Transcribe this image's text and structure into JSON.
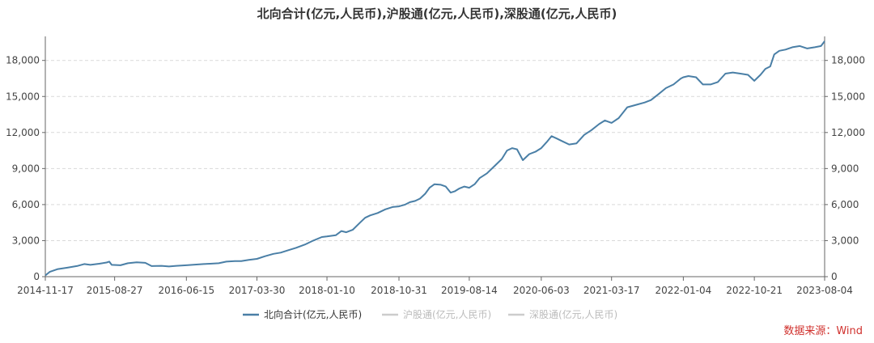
{
  "chart_data": {
    "type": "line",
    "title": "北向合计(亿元,人民币),沪股通(亿元,人民币),深股通(亿元,人民币)",
    "xlabel": "",
    "ylabel": "",
    "ylim": [
      0,
      20000
    ],
    "y_ticks": [
      "0",
      "3,000",
      "6,000",
      "9,000",
      "12,000",
      "15,000",
      "18,000"
    ],
    "y_tick_values": [
      0,
      3000,
      6000,
      9000,
      12000,
      15000,
      18000
    ],
    "x_ticks": [
      "2014-11-17",
      "2015-08-27",
      "2016-06-15",
      "2017-03-30",
      "2018-01-10",
      "2018-10-31",
      "2019-08-14",
      "2020-06-03",
      "2021-03-17",
      "2022-01-04",
      "2022-10-21",
      "2023-08-04"
    ],
    "xlim": [
      "2014-11-17",
      "2023-08-04"
    ],
    "grid": "horizontal dashed",
    "legend_position": "bottom-center",
    "series": [
      {
        "name": "北向合计(亿元,人民币)",
        "color": "#4a7fa6",
        "points": [
          [
            "2014-11-17",
            100
          ],
          [
            "2014-12-05",
            400
          ],
          [
            "2015-01-05",
            620
          ],
          [
            "2015-02-15",
            750
          ],
          [
            "2015-03-30",
            900
          ],
          [
            "2015-04-25",
            1050
          ],
          [
            "2015-05-20",
            980
          ],
          [
            "2015-06-25",
            1080
          ],
          [
            "2015-07-25",
            1180
          ],
          [
            "2015-08-05",
            1250
          ],
          [
            "2015-08-15",
            980
          ],
          [
            "2015-09-20",
            950
          ],
          [
            "2015-10-20",
            1120
          ],
          [
            "2015-11-25",
            1200
          ],
          [
            "2015-12-30",
            1150
          ],
          [
            "2016-01-25",
            880
          ],
          [
            "2016-03-05",
            900
          ],
          [
            "2016-04-05",
            850
          ],
          [
            "2016-05-05",
            900
          ],
          [
            "2016-06-15",
            950
          ],
          [
            "2016-07-20",
            1000
          ],
          [
            "2016-08-25",
            1050
          ],
          [
            "2016-09-20",
            1080
          ],
          [
            "2016-10-25",
            1120
          ],
          [
            "2016-11-25",
            1250
          ],
          [
            "2016-12-30",
            1300
          ],
          [
            "2017-01-25",
            1300
          ],
          [
            "2017-02-25",
            1400
          ],
          [
            "2017-03-30",
            1480
          ],
          [
            "2017-05-01",
            1700
          ],
          [
            "2017-06-05",
            1900
          ],
          [
            "2017-07-05",
            2000
          ],
          [
            "2017-08-05",
            2200
          ],
          [
            "2017-09-05",
            2400
          ],
          [
            "2017-10-15",
            2700
          ],
          [
            "2017-11-15",
            3000
          ],
          [
            "2017-12-20",
            3300
          ],
          [
            "2018-01-10",
            3350
          ],
          [
            "2018-02-15",
            3450
          ],
          [
            "2018-03-10",
            3800
          ],
          [
            "2018-03-30",
            3700
          ],
          [
            "2018-04-25",
            3900
          ],
          [
            "2018-05-25",
            4500
          ],
          [
            "2018-06-15",
            4900
          ],
          [
            "2018-07-05",
            5100
          ],
          [
            "2018-08-05",
            5300
          ],
          [
            "2018-09-05",
            5600
          ],
          [
            "2018-10-05",
            5800
          ],
          [
            "2018-10-31",
            5850
          ],
          [
            "2018-11-25",
            6000
          ],
          [
            "2018-12-15",
            6200
          ],
          [
            "2019-01-05",
            6300
          ],
          [
            "2019-01-25",
            6500
          ],
          [
            "2019-02-15",
            6900
          ],
          [
            "2019-03-05",
            7400
          ],
          [
            "2019-03-25",
            7700
          ],
          [
            "2019-04-20",
            7650
          ],
          [
            "2019-05-10",
            7500
          ],
          [
            "2019-05-30",
            7000
          ],
          [
            "2019-06-15",
            7100
          ],
          [
            "2019-07-05",
            7350
          ],
          [
            "2019-07-25",
            7500
          ],
          [
            "2019-08-14",
            7400
          ],
          [
            "2019-09-05",
            7700
          ],
          [
            "2019-09-25",
            8200
          ],
          [
            "2019-10-25",
            8600
          ],
          [
            "2019-11-25",
            9200
          ],
          [
            "2019-12-25",
            9800
          ],
          [
            "2020-01-15",
            10500
          ],
          [
            "2020-02-05",
            10700
          ],
          [
            "2020-02-25",
            10600
          ],
          [
            "2020-03-20",
            9700
          ],
          [
            "2020-04-15",
            10200
          ],
          [
            "2020-05-10",
            10400
          ],
          [
            "2020-06-03",
            10700
          ],
          [
            "2020-06-25",
            11200
          ],
          [
            "2020-07-15",
            11700
          ],
          [
            "2020-08-05",
            11500
          ],
          [
            "2020-08-25",
            11300
          ],
          [
            "2020-09-25",
            11000
          ],
          [
            "2020-10-25",
            11100
          ],
          [
            "2020-11-25",
            11800
          ],
          [
            "2020-12-25",
            12200
          ],
          [
            "2021-01-25",
            12700
          ],
          [
            "2021-02-18",
            13000
          ],
          [
            "2021-03-17",
            12800
          ],
          [
            "2021-04-15",
            13200
          ],
          [
            "2021-05-20",
            14100
          ],
          [
            "2021-06-25",
            14300
          ],
          [
            "2021-07-30",
            14500
          ],
          [
            "2021-08-25",
            14700
          ],
          [
            "2021-09-25",
            15200
          ],
          [
            "2021-10-25",
            15700
          ],
          [
            "2021-11-25",
            16000
          ],
          [
            "2021-12-25",
            16500
          ],
          [
            "2022-01-04",
            16600
          ],
          [
            "2022-01-25",
            16700
          ],
          [
            "2022-02-25",
            16600
          ],
          [
            "2022-03-25",
            16000
          ],
          [
            "2022-04-25",
            16000
          ],
          [
            "2022-05-25",
            16200
          ],
          [
            "2022-06-25",
            16900
          ],
          [
            "2022-07-25",
            17000
          ],
          [
            "2022-08-25",
            16900
          ],
          [
            "2022-09-25",
            16800
          ],
          [
            "2022-10-21",
            16300
          ],
          [
            "2022-11-15",
            16800
          ],
          [
            "2022-12-05",
            17300
          ],
          [
            "2022-12-25",
            17500
          ],
          [
            "2023-01-10",
            18500
          ],
          [
            "2023-01-31",
            18800
          ],
          [
            "2023-02-25",
            18900
          ],
          [
            "2023-03-25",
            19100
          ],
          [
            "2023-04-25",
            19200
          ],
          [
            "2023-05-25",
            19000
          ],
          [
            "2023-06-25",
            19100
          ],
          [
            "2023-07-20",
            19200
          ],
          [
            "2023-08-04",
            19600
          ]
        ]
      },
      {
        "name": "沪股通(亿元,人民币)",
        "color": "#cccccc",
        "points": []
      },
      {
        "name": "深股通(亿元,人民币)",
        "color": "#cccccc",
        "points": []
      }
    ]
  },
  "legend": {
    "items": [
      {
        "label": "北向合计(亿元,人民币)",
        "color": "#4a7fa6",
        "text_color": "#333333"
      },
      {
        "label": "沪股通(亿元,人民币)",
        "color": "#cccccc",
        "text_color": "#bbbbbb"
      },
      {
        "label": "深股通(亿元,人民币)",
        "color": "#cccccc",
        "text_color": "#bbbbbb"
      }
    ]
  },
  "source": {
    "label": "数据来源：Wind"
  }
}
